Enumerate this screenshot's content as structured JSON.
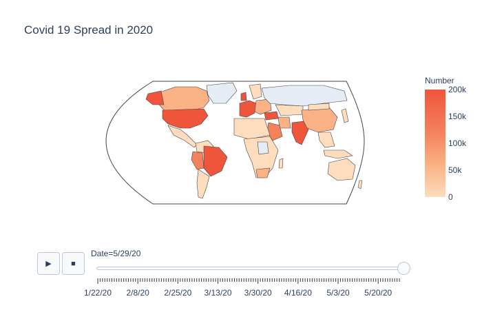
{
  "title": "Covid 19 Spread in 2020",
  "colorbar": {
    "title": "Number",
    "ticks": [
      "200k",
      "150k",
      "100k",
      "50k",
      "0"
    ],
    "colors": [
      "#ef553b",
      "#f3825c",
      "#fab185",
      "#fdddbd"
    ]
  },
  "map": {
    "projection": "natural-earth",
    "land_no_data_color": "#e5ecf6",
    "border_color": "#444444"
  },
  "slider": {
    "current_label": "Date=5/29/20",
    "tick_labels": [
      "1/22/20",
      "2/8/20",
      "2/25/20",
      "3/13/20",
      "3/30/20",
      "4/16/20",
      "5/3/20",
      "5/20/20"
    ],
    "value_fraction": 1.0
  },
  "controls": {
    "play_icon": "play-icon",
    "stop_icon": "stop-icon",
    "play_symbol": "▶",
    "stop_symbol": "■"
  }
}
